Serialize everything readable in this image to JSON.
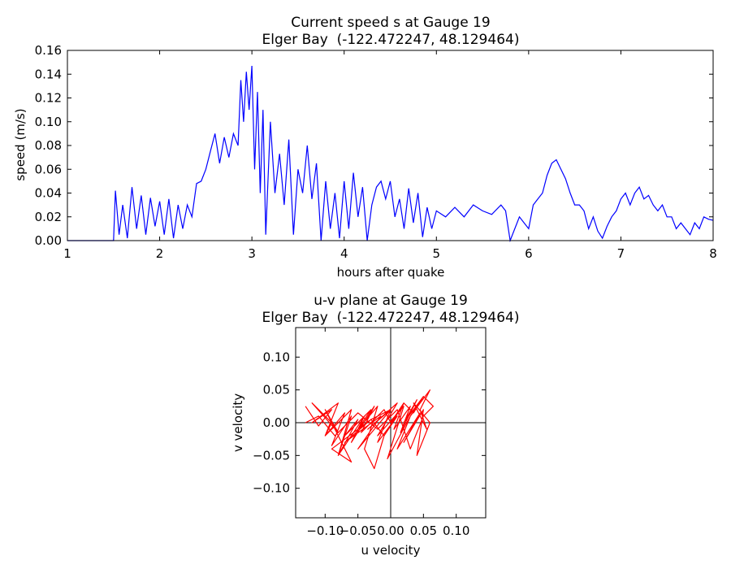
{
  "chart_data": [
    {
      "type": "line",
      "title": "Current speed s at Gauge 19",
      "subtitle": "Elger Bay  (-122.472247, 48.129464)",
      "xlabel": "hours after quake",
      "ylabel": "speed (m/s)",
      "xlim": [
        1,
        8
      ],
      "ylim": [
        0,
        0.16
      ],
      "xticks": [
        "1",
        "2",
        "3",
        "4",
        "5",
        "6",
        "7",
        "8"
      ],
      "yticks": [
        "0.00",
        "0.02",
        "0.04",
        "0.06",
        "0.08",
        "0.10",
        "0.12",
        "0.14",
        "0.16"
      ],
      "grid": false,
      "color": "#0000ff",
      "series": [
        {
          "x": [
            1.0,
            1.5,
            1.52,
            1.56,
            1.6,
            1.65,
            1.7,
            1.75,
            1.8,
            1.85,
            1.9,
            1.95,
            2.0,
            2.05,
            2.1,
            2.15,
            2.2,
            2.25,
            2.3,
            2.35,
            2.4,
            2.45,
            2.5,
            2.55,
            2.6,
            2.65,
            2.7,
            2.75,
            2.8,
            2.85,
            2.88,
            2.91,
            2.94,
            2.97,
            3.0,
            3.03,
            3.06,
            3.09,
            3.12,
            3.15,
            3.2,
            3.25,
            3.3,
            3.35,
            3.4,
            3.45,
            3.5,
            3.55,
            3.6,
            3.65,
            3.7,
            3.75,
            3.8,
            3.85,
            3.9,
            3.95,
            4.0,
            4.05,
            4.1,
            4.15,
            4.2,
            4.25,
            4.3,
            4.35,
            4.4,
            4.45,
            4.5,
            4.55,
            4.6,
            4.65,
            4.7,
            4.75,
            4.8,
            4.85,
            4.9,
            4.95,
            5.0,
            5.1,
            5.2,
            5.3,
            5.4,
            5.5,
            5.6,
            5.7,
            5.75,
            5.8,
            5.85,
            5.9,
            5.95,
            6.0,
            6.05,
            6.1,
            6.15,
            6.2,
            6.25,
            6.3,
            6.35,
            6.4,
            6.45,
            6.5,
            6.55,
            6.6,
            6.65,
            6.7,
            6.75,
            6.8,
            6.85,
            6.9,
            6.95,
            7.0,
            7.05,
            7.1,
            7.15,
            7.2,
            7.25,
            7.3,
            7.35,
            7.4,
            7.45,
            7.5,
            7.55,
            7.6,
            7.65,
            7.7,
            7.75,
            7.8,
            7.85,
            7.9,
            7.95,
            8.0
          ],
          "values": [
            0.0,
            0.0,
            0.042,
            0.005,
            0.03,
            0.002,
            0.045,
            0.01,
            0.038,
            0.005,
            0.036,
            0.012,
            0.033,
            0.005,
            0.035,
            0.002,
            0.03,
            0.01,
            0.03,
            0.02,
            0.048,
            0.05,
            0.06,
            0.075,
            0.09,
            0.065,
            0.087,
            0.07,
            0.09,
            0.08,
            0.135,
            0.1,
            0.142,
            0.11,
            0.147,
            0.06,
            0.125,
            0.04,
            0.11,
            0.005,
            0.1,
            0.04,
            0.073,
            0.03,
            0.085,
            0.005,
            0.06,
            0.04,
            0.08,
            0.035,
            0.065,
            0.0,
            0.05,
            0.01,
            0.04,
            0.002,
            0.05,
            0.01,
            0.057,
            0.02,
            0.045,
            0.0,
            0.03,
            0.045,
            0.05,
            0.035,
            0.05,
            0.02,
            0.035,
            0.01,
            0.044,
            0.015,
            0.04,
            0.003,
            0.028,
            0.01,
            0.025,
            0.02,
            0.028,
            0.02,
            0.03,
            0.025,
            0.022,
            0.03,
            0.025,
            0.0,
            0.01,
            0.02,
            0.015,
            0.01,
            0.03,
            0.035,
            0.04,
            0.055,
            0.065,
            0.068,
            0.06,
            0.052,
            0.04,
            0.03,
            0.03,
            0.025,
            0.01,
            0.02,
            0.008,
            0.002,
            0.012,
            0.02,
            0.025,
            0.035,
            0.04,
            0.03,
            0.04,
            0.045,
            0.035,
            0.038,
            0.03,
            0.025,
            0.03,
            0.02,
            0.02,
            0.01,
            0.015,
            0.01,
            0.005,
            0.015,
            0.01,
            0.02,
            0.018,
            0.017
          ]
        }
      ]
    },
    {
      "type": "line",
      "title": "u-v plane at Gauge 19",
      "subtitle": "Elger Bay  (-122.472247, 48.129464)",
      "xlabel": "u velocity",
      "ylabel": "v velocity",
      "xlim": [
        -0.145,
        0.145
      ],
      "ylim": [
        -0.145,
        0.145
      ],
      "xticks": [
        "−0.10",
        "−0.05",
        "0.00",
        "0.05",
        "0.10"
      ],
      "yticks": [
        "−0.10",
        "−0.05",
        "0.00",
        "0.05",
        "0.10"
      ],
      "grid": false,
      "color": "#ff0000",
      "series": [
        {
          "u": [
            -0.13,
            -0.11,
            -0.09,
            -0.12,
            -0.08,
            -0.1,
            -0.07,
            -0.09,
            -0.06,
            -0.08,
            -0.05,
            -0.07,
            -0.03,
            -0.05,
            -0.02,
            -0.04,
            -0.025,
            -0.01,
            -0.03,
            0.0,
            -0.02,
            0.01,
            -0.01,
            0.02,
            0.005,
            0.03,
            0.015,
            0.04,
            0.02,
            0.05,
            0.03,
            0.06,
            0.045,
            0.055,
            0.035,
            0.06,
            0.04,
            0.05,
            0.02,
            0.045,
            0.01,
            0.03,
            -0.005,
            0.02,
            -0.02,
            0.01,
            -0.035,
            0.0,
            -0.05,
            -0.015,
            -0.07,
            -0.03,
            -0.09,
            -0.06,
            -0.1,
            -0.08,
            -0.12,
            -0.09,
            -0.1,
            -0.06,
            -0.08,
            -0.04,
            -0.06,
            -0.025,
            -0.045,
            -0.01,
            0.0,
            0.02,
            0.035,
            0.05,
            0.065,
            0.05,
            0.03,
            0.01,
            -0.02,
            -0.05,
            -0.085,
            -0.11,
            -0.13
          ],
          "v": [
            0.025,
            -0.005,
            0.02,
            0.0,
            0.03,
            -0.02,
            0.015,
            -0.035,
            0.01,
            -0.05,
            0.005,
            -0.02,
            0.02,
            -0.01,
            0.025,
            -0.04,
            -0.07,
            -0.02,
            0.005,
            0.02,
            -0.03,
            0.01,
            -0.02,
            0.03,
            -0.01,
            0.025,
            -0.015,
            0.035,
            0.0,
            0.04,
            0.01,
            0.05,
            0.02,
            -0.01,
            0.03,
            0.0,
            -0.05,
            0.02,
            -0.03,
            0.015,
            -0.04,
            0.01,
            -0.055,
            0.025,
            -0.02,
            0.03,
            -0.01,
            0.02,
            -0.04,
            0.01,
            -0.03,
            0.005,
            -0.04,
            -0.06,
            0.02,
            -0.015,
            0.03,
            0.0,
            -0.02,
            0.02,
            -0.05,
            0.01,
            -0.03,
            0.025,
            -0.015,
            0.02,
            0.0,
            0.03,
            0.015,
            0.04,
            0.025,
            0.01,
            -0.04,
            0.02,
            -0.01,
            0.015,
            -0.02,
            0.01,
            0.0
          ]
        }
      ]
    }
  ]
}
